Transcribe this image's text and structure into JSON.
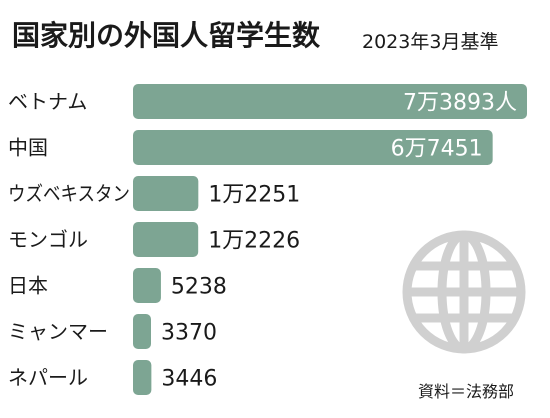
{
  "header": {
    "title": "国家別の外国人留学生数",
    "subtitle": "2023年3月基準"
  },
  "source": "資料＝法務部",
  "colors": {
    "bar": "#7da593",
    "globe": "#d0d0d0"
  },
  "icons": [
    "globe-icon"
  ],
  "chart_data": {
    "type": "bar",
    "orientation": "horizontal",
    "title": "国家別の外国人留学生数",
    "subtitle": "2023年3月基準",
    "categories": [
      "ベトナム",
      "中国",
      "ウズベキスタン",
      "モンゴル",
      "日本",
      "ミャンマー",
      "ネパール"
    ],
    "values": [
      73893,
      67451,
      12251,
      12226,
      5238,
      3370,
      3446
    ],
    "labels": [
      "7万3893人",
      "6万7451",
      "1万2251",
      "1万2226",
      "5238",
      "3370",
      "3446"
    ],
    "xlim": [
      0,
      73893
    ],
    "grid": false,
    "legend": "none"
  }
}
